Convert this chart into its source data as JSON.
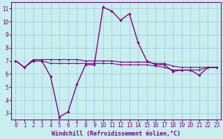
{
  "title": "",
  "xlabel": "Windchill (Refroidissement éolien,°C)",
  "bg_color": "#c8eef0",
  "line_color": "#800080",
  "grid_color": "#a0c8d8",
  "x_hours": [
    0,
    1,
    2,
    3,
    4,
    5,
    6,
    7,
    8,
    9,
    10,
    11,
    12,
    13,
    14,
    15,
    16,
    17,
    18,
    19,
    20,
    21,
    22,
    23
  ],
  "windchill": [
    7.0,
    6.5,
    7.0,
    7.0,
    5.8,
    2.7,
    3.1,
    5.2,
    6.7,
    6.7,
    11.1,
    10.8,
    10.1,
    10.6,
    8.4,
    7.0,
    6.7,
    6.7,
    6.2,
    6.3,
    6.3,
    5.9,
    6.5,
    6.5
  ],
  "temp_line": [
    7.0,
    6.5,
    7.1,
    7.1,
    7.1,
    7.1,
    7.1,
    7.1,
    7.0,
    7.0,
    7.0,
    7.0,
    6.9,
    6.9,
    6.9,
    6.9,
    6.8,
    6.8,
    6.6,
    6.5,
    6.5,
    6.5,
    6.5,
    6.5
  ],
  "feels_line": [
    7.0,
    6.5,
    7.0,
    7.0,
    6.8,
    6.8,
    6.8,
    6.8,
    6.8,
    6.8,
    6.8,
    6.8,
    6.7,
    6.7,
    6.7,
    6.7,
    6.6,
    6.5,
    6.3,
    6.3,
    6.3,
    6.3,
    6.5,
    6.5
  ],
  "ylim": [
    2.5,
    11.5
  ],
  "yticks": [
    3,
    4,
    5,
    6,
    7,
    8,
    9,
    10,
    11
  ],
  "xlim": [
    -0.5,
    23.5
  ],
  "xticks": [
    0,
    1,
    2,
    3,
    4,
    5,
    6,
    7,
    8,
    9,
    10,
    11,
    12,
    13,
    14,
    15,
    16,
    17,
    18,
    19,
    20,
    21,
    22,
    23
  ],
  "xlabel_fontsize": 6.0,
  "tick_fontsize": 5.5
}
